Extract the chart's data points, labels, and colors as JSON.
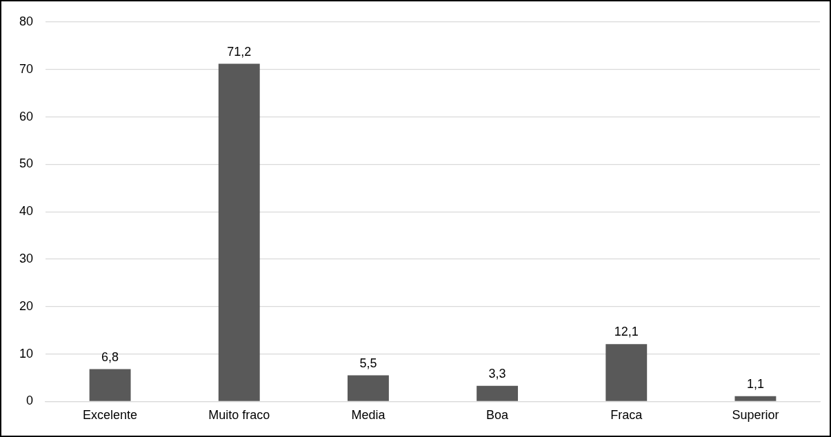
{
  "chart_data": {
    "type": "bar",
    "categories": [
      "Excelente",
      "Muito fraco",
      "Media",
      "Boa",
      "Fraca",
      "Superior"
    ],
    "values": [
      6.8,
      71.2,
      5.5,
      3.3,
      12.1,
      1.1
    ],
    "value_labels": [
      "6,8",
      "71,2",
      "5,5",
      "3,3",
      "12,1",
      "1,1"
    ],
    "color": "#595959",
    "ylim": [
      0,
      80
    ],
    "yticks": [
      0,
      10,
      20,
      30,
      40,
      50,
      60,
      70,
      80
    ],
    "grid": "y",
    "legend": false
  }
}
